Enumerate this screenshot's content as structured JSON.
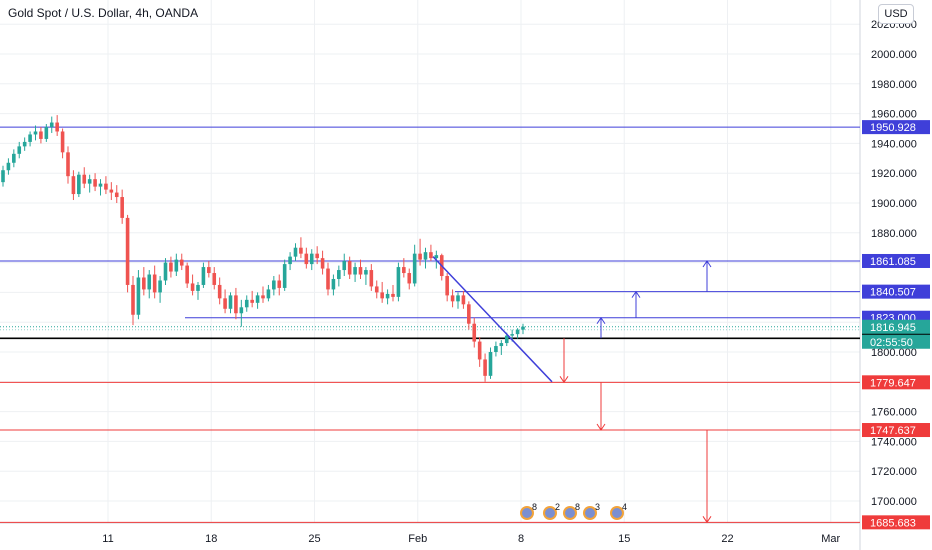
{
  "header": {
    "title": "Gold Spot / U.S. Dollar, 4h, OANDA",
    "currency": "USD"
  },
  "colors": {
    "bull": "#26a69a",
    "bear": "#ef5350",
    "blue_line": "#3f3fd9",
    "red_line": "#ef3b3b",
    "current_price": "#26a69a",
    "black_line": "#000000",
    "grid": "#eef0f3"
  },
  "chart_data": {
    "type": "candlestick",
    "symbol": "Gold Spot / U.S. Dollar, 4h, OANDA",
    "ylim": [
      1682,
      2040
    ],
    "y_ticks": [
      "2020.000",
      "2000.000",
      "1980.000",
      "1960.000",
      "1940.000",
      "1920.000",
      "1900.000",
      "1880.000",
      "1860.000",
      "1840.000",
      "1820.000",
      "1800.000",
      "1780.000",
      "1760.000",
      "1740.000",
      "1720.000",
      "1700.000"
    ],
    "x_ticks": [
      "11",
      "18",
      "25",
      "Feb",
      "8",
      "15",
      "22",
      "Mar"
    ],
    "grid": true,
    "current_price": "1816.945",
    "countdown": "02:55:50",
    "levels": [
      {
        "label": "1950.928",
        "color": "blue"
      },
      {
        "label": "1861.085",
        "color": "blue"
      },
      {
        "label": "1840.507",
        "color": "blue"
      },
      {
        "label": "1823.000",
        "color": "blue"
      },
      {
        "label": "1809.205",
        "color": "black"
      },
      {
        "label": "1779.647",
        "color": "red"
      },
      {
        "label": "1747.637",
        "color": "red"
      },
      {
        "label": "1685.683",
        "color": "red"
      }
    ],
    "candles": [
      [
        1914,
        1925,
        1911,
        1922
      ],
      [
        1922,
        1930,
        1919,
        1927
      ],
      [
        1927,
        1936,
        1924,
        1933
      ],
      [
        1933,
        1941,
        1930,
        1938
      ],
      [
        1938,
        1944,
        1935,
        1941
      ],
      [
        1941,
        1948,
        1938,
        1946
      ],
      [
        1946,
        1952,
        1942,
        1948
      ],
      [
        1948,
        1951,
        1940,
        1943
      ],
      [
        1943,
        1953,
        1941,
        1951
      ],
      [
        1951,
        1958,
        1947,
        1954
      ],
      [
        1954,
        1959,
        1945,
        1948
      ],
      [
        1948,
        1950,
        1930,
        1934
      ],
      [
        1934,
        1938,
        1913,
        1918
      ],
      [
        1918,
        1922,
        1902,
        1906
      ],
      [
        1906,
        1921,
        1904,
        1919
      ],
      [
        1919,
        1924,
        1910,
        1913
      ],
      [
        1913,
        1919,
        1907,
        1916
      ],
      [
        1916,
        1920,
        1908,
        1911
      ],
      [
        1911,
        1916,
        1905,
        1913
      ],
      [
        1913,
        1918,
        1906,
        1909
      ],
      [
        1909,
        1914,
        1902,
        1907
      ],
      [
        1907,
        1912,
        1900,
        1904
      ],
      [
        1904,
        1909,
        1886,
        1890
      ],
      [
        1890,
        1892,
        1840,
        1845
      ],
      [
        1845,
        1851,
        1818,
        1825
      ],
      [
        1825,
        1855,
        1822,
        1850
      ],
      [
        1850,
        1857,
        1838,
        1842
      ],
      [
        1842,
        1855,
        1836,
        1852
      ],
      [
        1852,
        1858,
        1836,
        1840
      ],
      [
        1840,
        1851,
        1833,
        1848
      ],
      [
        1848,
        1863,
        1845,
        1860
      ],
      [
        1860,
        1864,
        1850,
        1854
      ],
      [
        1854,
        1866,
        1851,
        1862
      ],
      [
        1862,
        1866,
        1855,
        1858
      ],
      [
        1858,
        1860,
        1843,
        1846
      ],
      [
        1846,
        1852,
        1838,
        1841
      ],
      [
        1841,
        1847,
        1835,
        1845
      ],
      [
        1845,
        1860,
        1843,
        1857
      ],
      [
        1857,
        1861,
        1850,
        1853
      ],
      [
        1853,
        1857,
        1842,
        1845
      ],
      [
        1845,
        1850,
        1832,
        1836
      ],
      [
        1836,
        1842,
        1826,
        1829
      ],
      [
        1829,
        1840,
        1826,
        1838
      ],
      [
        1838,
        1843,
        1822,
        1826
      ],
      [
        1826,
        1835,
        1817,
        1830
      ],
      [
        1830,
        1838,
        1827,
        1835
      ],
      [
        1835,
        1841,
        1830,
        1833
      ],
      [
        1833,
        1840,
        1829,
        1838
      ],
      [
        1838,
        1844,
        1833,
        1836
      ],
      [
        1836,
        1845,
        1834,
        1842
      ],
      [
        1842,
        1851,
        1838,
        1848
      ],
      [
        1848,
        1852,
        1838,
        1843
      ],
      [
        1843,
        1862,
        1841,
        1859
      ],
      [
        1859,
        1867,
        1855,
        1864
      ],
      [
        1864,
        1873,
        1861,
        1870
      ],
      [
        1870,
        1877,
        1863,
        1866
      ],
      [
        1866,
        1870,
        1856,
        1859
      ],
      [
        1859,
        1869,
        1855,
        1866
      ],
      [
        1866,
        1871,
        1859,
        1863
      ],
      [
        1863,
        1868,
        1852,
        1856
      ],
      [
        1856,
        1860,
        1838,
        1842
      ],
      [
        1842,
        1852,
        1838,
        1849
      ],
      [
        1849,
        1858,
        1844,
        1855
      ],
      [
        1855,
        1866,
        1851,
        1861
      ],
      [
        1861,
        1864,
        1849,
        1852
      ],
      [
        1852,
        1860,
        1847,
        1857
      ],
      [
        1857,
        1862,
        1849,
        1852
      ],
      [
        1852,
        1857,
        1845,
        1855
      ],
      [
        1855,
        1859,
        1841,
        1844
      ],
      [
        1844,
        1848,
        1836,
        1840
      ],
      [
        1840,
        1847,
        1833,
        1836
      ],
      [
        1836,
        1842,
        1832,
        1839
      ],
      [
        1839,
        1845,
        1834,
        1837
      ],
      [
        1837,
        1860,
        1834,
        1857
      ],
      [
        1857,
        1863,
        1850,
        1853
      ],
      [
        1853,
        1856,
        1842,
        1846
      ],
      [
        1846,
        1872,
        1844,
        1866
      ],
      [
        1866,
        1876,
        1858,
        1862
      ],
      [
        1862,
        1870,
        1856,
        1867
      ],
      [
        1867,
        1872,
        1861,
        1863
      ],
      [
        1863,
        1868,
        1856,
        1865
      ],
      [
        1865,
        1866,
        1848,
        1851
      ],
      [
        1851,
        1853,
        1834,
        1838
      ],
      [
        1838,
        1842,
        1830,
        1834
      ],
      [
        1834,
        1840,
        1829,
        1838
      ],
      [
        1838,
        1841,
        1829,
        1832
      ],
      [
        1832,
        1834,
        1815,
        1819
      ],
      [
        1819,
        1823,
        1803,
        1807
      ],
      [
        1807,
        1810,
        1790,
        1795
      ],
      [
        1795,
        1799,
        1780,
        1784
      ],
      [
        1784,
        1803,
        1782,
        1800
      ],
      [
        1800,
        1807,
        1797,
        1804
      ],
      [
        1804,
        1808,
        1798,
        1806
      ],
      [
        1806,
        1813,
        1804,
        1811
      ],
      [
        1811,
        1815,
        1807,
        1812
      ],
      [
        1812,
        1816,
        1809,
        1815
      ],
      [
        1815,
        1819,
        1812,
        1817
      ]
    ]
  }
}
